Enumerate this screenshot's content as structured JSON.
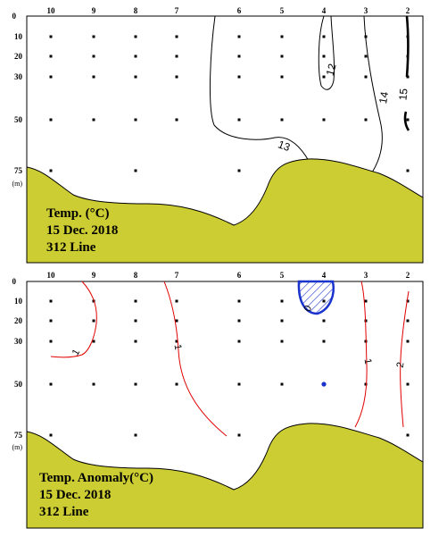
{
  "chart_data": [
    {
      "type": "contour",
      "title": "Temp. (°C)",
      "caption_lines": [
        "Temp. (°C)",
        "15  Dec. 2018",
        "312 Line"
      ],
      "stations": [
        "10",
        "9",
        "8",
        "7",
        "6",
        "5",
        "4",
        "3",
        "2"
      ],
      "depths": [
        "0",
        "10",
        "20",
        "30",
        "50",
        "75"
      ],
      "depth_unit": "(m)",
      "contour_labels": [
        "12",
        "13",
        "14",
        "15"
      ],
      "colors": {
        "terrain": "#cccc33",
        "contour": "#000000"
      }
    },
    {
      "type": "contour",
      "title": "Temp. Anomaly(°C)",
      "caption_lines": [
        "Temp. Anomaly(°C)",
        "15  Dec. 2018",
        "312 Line"
      ],
      "stations": [
        "10",
        "9",
        "8",
        "7",
        "6",
        "5",
        "4",
        "3",
        "2"
      ],
      "depths": [
        "0",
        "10",
        "20",
        "30",
        "50",
        "75"
      ],
      "depth_unit": "(m)",
      "contour_labels": [
        "1",
        "1",
        "0",
        "1",
        "2"
      ],
      "colors": {
        "terrain": "#cccc33",
        "positive": "#e00000",
        "negative": "#1a33cc"
      }
    }
  ]
}
